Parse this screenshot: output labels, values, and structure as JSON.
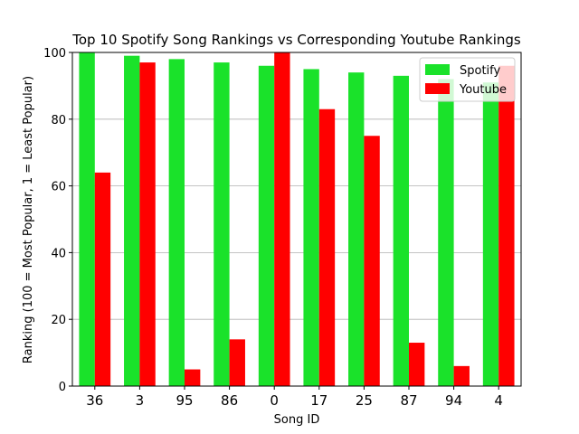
{
  "chart_data": {
    "type": "bar",
    "title": "Top 10 Spotify Song Rankings vs Corresponding Youtube Rankings",
    "xlabel": "Song ID",
    "ylabel": "Ranking (100 = Most Popular, 1 = Least Popular)",
    "categories": [
      "36",
      "3",
      "95",
      "86",
      "0",
      "17",
      "25",
      "87",
      "94",
      "4"
    ],
    "series": [
      {
        "name": "Spotify",
        "color": "#1ae22a",
        "values": [
          100,
          99,
          98,
          97,
          96,
          95,
          94,
          93,
          92,
          91
        ]
      },
      {
        "name": "Youtube",
        "color": "#ff0000",
        "values": [
          64,
          97,
          5,
          14,
          100,
          83,
          75,
          13,
          6,
          96
        ]
      }
    ],
    "ylim": [
      0,
      100
    ],
    "yticks": [
      0,
      20,
      40,
      60,
      80,
      100
    ],
    "grid": "horizontal",
    "legend_position": "top-right"
  }
}
